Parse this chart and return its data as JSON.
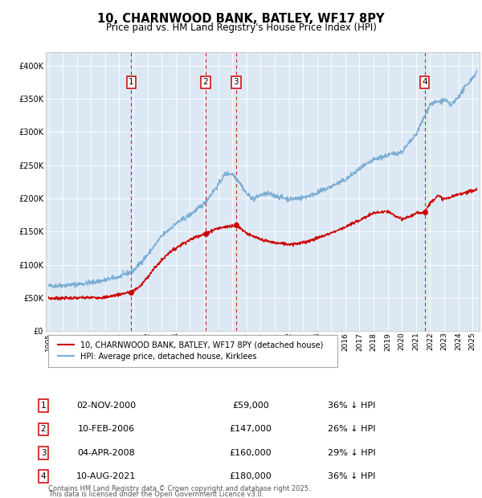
{
  "title": "10, CHARNWOOD BANK, BATLEY, WF17 8PY",
  "subtitle": "Price paid vs. HM Land Registry's House Price Index (HPI)",
  "plot_bg_color": "#dce9f5",
  "ylim": [
    0,
    420000
  ],
  "yticks": [
    0,
    50000,
    100000,
    150000,
    200000,
    250000,
    300000,
    350000,
    400000
  ],
  "xlim_start": 1994.8,
  "xlim_end": 2025.5,
  "xticks": [
    1995,
    1996,
    1997,
    1998,
    1999,
    2000,
    2001,
    2002,
    2003,
    2004,
    2005,
    2006,
    2007,
    2008,
    2009,
    2010,
    2011,
    2012,
    2013,
    2014,
    2015,
    2016,
    2017,
    2018,
    2019,
    2020,
    2021,
    2022,
    2023,
    2024,
    2025
  ],
  "sale_color": "#cc0000",
  "hpi_color": "#7aadd4",
  "vline_color": "#cc0000",
  "transactions": [
    {
      "num": 1,
      "year": 2000.84,
      "price": 59000
    },
    {
      "num": 2,
      "year": 2006.11,
      "price": 147000
    },
    {
      "num": 3,
      "year": 2008.27,
      "price": 160000
    },
    {
      "num": 4,
      "year": 2021.61,
      "price": 180000
    }
  ],
  "legend_label_sale": "10, CHARNWOOD BANK, BATLEY, WF17 8PY (detached house)",
  "legend_label_hpi": "HPI: Average price, detached house, Kirklees",
  "footer1": "Contains HM Land Registry data © Crown copyright and database right 2025.",
  "footer2": "This data is licensed under the Open Government Licence v3.0.",
  "table_rows": [
    {
      "num": 1,
      "date": "02-NOV-2000",
      "price": "£59,000",
      "info": "36% ↓ HPI"
    },
    {
      "num": 2,
      "date": "10-FEB-2006",
      "price": "£147,000",
      "info": "26% ↓ HPI"
    },
    {
      "num": 3,
      "date": "04-APR-2008",
      "price": "£160,000",
      "info": "29% ↓ HPI"
    },
    {
      "num": 4,
      "date": "10-AUG-2021",
      "price": "£180,000",
      "info": "36% ↓ HPI"
    }
  ]
}
